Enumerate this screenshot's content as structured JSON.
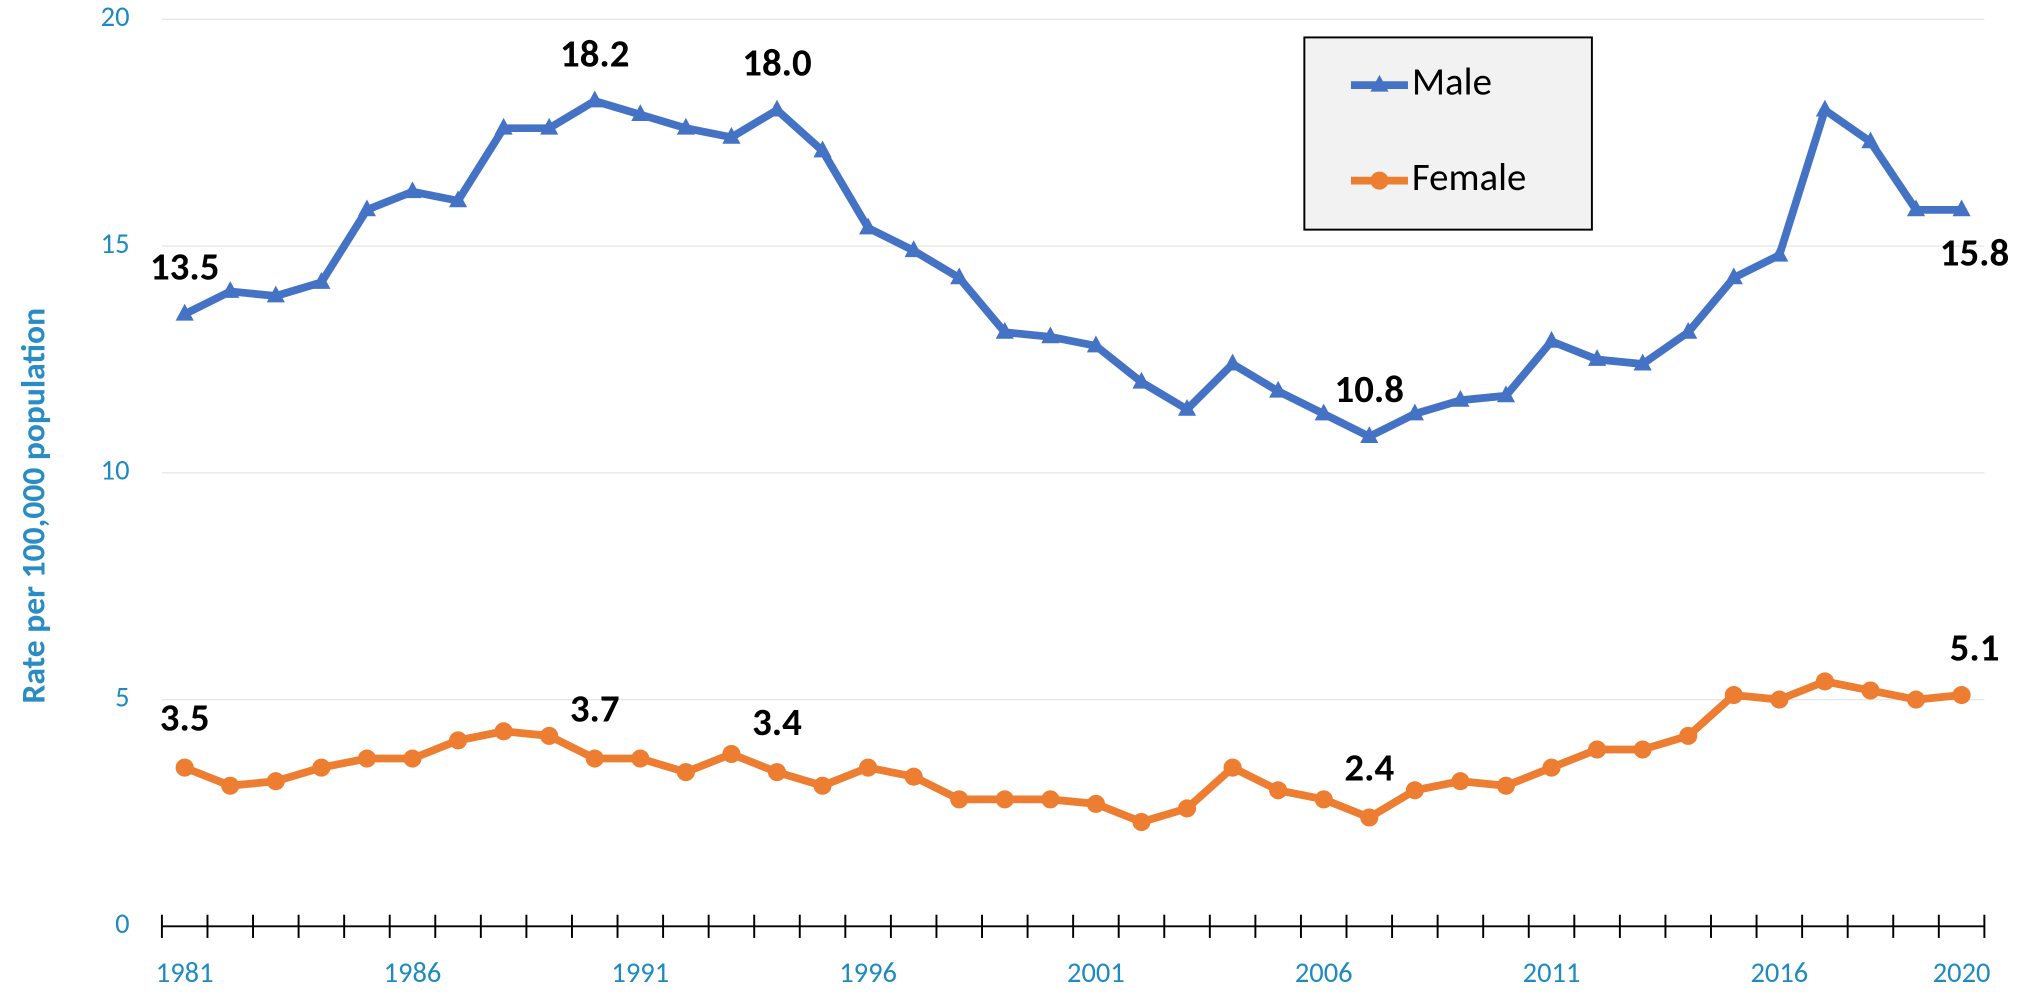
{
  "chart_data": {
    "type": "line",
    "y_label": "Rate per 100,000 population",
    "x": [
      1981,
      1982,
      1983,
      1984,
      1985,
      1986,
      1987,
      1988,
      1989,
      1990,
      1991,
      1992,
      1993,
      1994,
      1995,
      1996,
      1997,
      1998,
      1999,
      2000,
      2001,
      2002,
      2003,
      2004,
      2005,
      2006,
      2007,
      2008,
      2009,
      2010,
      2011,
      2012,
      2013,
      2014,
      2015,
      2016,
      2017,
      2018,
      2019,
      2020
    ],
    "series": [
      {
        "name": "Male",
        "color": "#4472c4",
        "marker": "triangle",
        "values": [
          13.5,
          14.0,
          13.9,
          14.2,
          15.8,
          16.2,
          16.0,
          17.6,
          17.6,
          18.2,
          17.9,
          17.6,
          17.4,
          18.0,
          17.1,
          15.4,
          14.9,
          14.3,
          13.1,
          13.0,
          12.8,
          12.0,
          11.4,
          12.4,
          11.8,
          11.3,
          10.8,
          11.3,
          11.6,
          11.7,
          12.9,
          12.5,
          12.4,
          13.1,
          14.3,
          14.8,
          18.0,
          17.3,
          15.8,
          15.8
        ],
        "value_labels": [
          "13.5",
          null,
          null,
          null,
          null,
          null,
          null,
          null,
          null,
          "18.2",
          null,
          null,
          null,
          "18.0",
          null,
          null,
          null,
          null,
          null,
          null,
          null,
          null,
          null,
          null,
          null,
          null,
          "10.8",
          null,
          null,
          null,
          null,
          null,
          null,
          null,
          null,
          null,
          null,
          null,
          null,
          "15.8"
        ]
      },
      {
        "name": "Female",
        "color": "#ed7d31",
        "marker": "circle",
        "values": [
          3.5,
          3.1,
          3.2,
          3.5,
          3.7,
          3.7,
          4.1,
          4.3,
          4.2,
          3.7,
          3.7,
          3.4,
          3.8,
          3.4,
          3.1,
          3.5,
          3.3,
          2.8,
          2.8,
          2.8,
          2.7,
          2.3,
          2.6,
          3.5,
          3.0,
          2.8,
          2.4,
          3.0,
          3.2,
          3.1,
          3.5,
          3.9,
          3.9,
          4.2,
          5.1,
          5.0,
          5.4,
          5.2,
          5.0,
          5.1
        ],
        "value_labels": [
          "3.5",
          null,
          null,
          null,
          null,
          null,
          null,
          null,
          null,
          "3.7",
          null,
          null,
          null,
          "3.4",
          null,
          null,
          null,
          null,
          null,
          null,
          null,
          null,
          null,
          null,
          null,
          null,
          "2.4",
          null,
          null,
          null,
          null,
          null,
          null,
          null,
          null,
          null,
          null,
          null,
          null,
          "5.1"
        ]
      }
    ],
    "xlim": [
      1980.5,
      2020.5
    ],
    "xticks": [
      1981,
      1986,
      1991,
      1996,
      2001,
      2006,
      2011,
      2016,
      2020
    ],
    "ylim": [
      0,
      20
    ],
    "yticks": [
      0,
      5,
      10,
      15,
      20
    ],
    "grid": true,
    "legend": "top-right"
  }
}
